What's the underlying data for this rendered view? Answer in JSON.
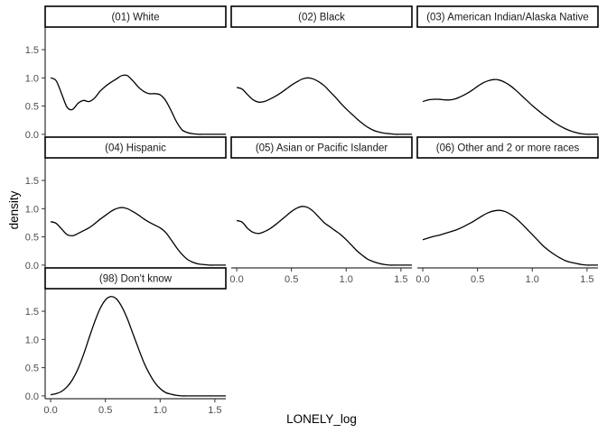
{
  "chart_data": {
    "type": "line",
    "kind": "faceted density plot",
    "xlabel": "LONELY_log",
    "ylabel": "density",
    "xlim": [
      -0.05,
      1.6
    ],
    "ylim": [
      -0.05,
      1.9
    ],
    "x_ticks": [
      0.0,
      0.5,
      1.0,
      1.5
    ],
    "x_tick_labels": [
      "0.0",
      "0.5",
      "1.0",
      "1.5"
    ],
    "y_ticks": [
      0.0,
      0.5,
      1.0,
      1.5
    ],
    "y_tick_labels": [
      "0.0",
      "0.5",
      "1.0",
      "1.5"
    ],
    "grid": false,
    "layout": "3x3 facet grid",
    "line_color": "#000000",
    "panels": [
      {
        "name": "(01) White",
        "row": 0,
        "col": 0,
        "x": [
          0.0,
          0.05,
          0.1,
          0.15,
          0.2,
          0.25,
          0.3,
          0.35,
          0.4,
          0.45,
          0.5,
          0.55,
          0.6,
          0.65,
          0.7,
          0.75,
          0.8,
          0.85,
          0.9,
          0.95,
          1.0,
          1.05,
          1.1,
          1.15,
          1.2,
          1.25,
          1.3,
          1.35,
          1.4,
          1.45,
          1.5,
          1.55,
          1.6
        ],
        "y": [
          1.0,
          0.95,
          0.72,
          0.48,
          0.44,
          0.55,
          0.6,
          0.58,
          0.64,
          0.76,
          0.85,
          0.92,
          0.98,
          1.04,
          1.04,
          0.95,
          0.84,
          0.76,
          0.72,
          0.72,
          0.7,
          0.6,
          0.42,
          0.22,
          0.08,
          0.03,
          0.01,
          0.0,
          0.0,
          0.0,
          0.0,
          0.0,
          0.0
        ]
      },
      {
        "name": "(02) Black",
        "row": 0,
        "col": 1,
        "x": [
          0.0,
          0.05,
          0.1,
          0.15,
          0.2,
          0.25,
          0.3,
          0.35,
          0.4,
          0.45,
          0.5,
          0.55,
          0.6,
          0.65,
          0.7,
          0.75,
          0.8,
          0.85,
          0.9,
          0.95,
          1.0,
          1.05,
          1.1,
          1.15,
          1.2,
          1.25,
          1.3,
          1.35,
          1.4,
          1.45,
          1.5,
          1.55,
          1.6
        ],
        "y": [
          0.83,
          0.8,
          0.7,
          0.61,
          0.57,
          0.58,
          0.62,
          0.67,
          0.73,
          0.8,
          0.87,
          0.93,
          0.98,
          1.0,
          0.98,
          0.93,
          0.86,
          0.76,
          0.66,
          0.55,
          0.45,
          0.36,
          0.27,
          0.19,
          0.12,
          0.07,
          0.04,
          0.02,
          0.01,
          0.0,
          0.0,
          0.0,
          0.0
        ]
      },
      {
        "name": "(03) American Indian/Alaska Native",
        "row": 0,
        "col": 2,
        "x": [
          0.0,
          0.05,
          0.1,
          0.15,
          0.2,
          0.25,
          0.3,
          0.35,
          0.4,
          0.45,
          0.5,
          0.55,
          0.6,
          0.65,
          0.7,
          0.75,
          0.8,
          0.85,
          0.9,
          0.95,
          1.0,
          1.05,
          1.1,
          1.15,
          1.2,
          1.25,
          1.3,
          1.35,
          1.4,
          1.45,
          1.5,
          1.55,
          1.6
        ],
        "y": [
          0.58,
          0.61,
          0.62,
          0.62,
          0.61,
          0.61,
          0.63,
          0.67,
          0.72,
          0.78,
          0.85,
          0.91,
          0.95,
          0.97,
          0.96,
          0.92,
          0.86,
          0.78,
          0.69,
          0.6,
          0.51,
          0.43,
          0.35,
          0.28,
          0.21,
          0.15,
          0.1,
          0.06,
          0.03,
          0.01,
          0.0,
          0.0,
          0.0
        ]
      },
      {
        "name": "(04) Hispanic",
        "row": 1,
        "col": 0,
        "x": [
          0.0,
          0.05,
          0.1,
          0.15,
          0.2,
          0.25,
          0.3,
          0.35,
          0.4,
          0.45,
          0.5,
          0.55,
          0.6,
          0.65,
          0.7,
          0.75,
          0.8,
          0.85,
          0.9,
          0.95,
          1.0,
          1.05,
          1.1,
          1.15,
          1.2,
          1.25,
          1.3,
          1.35,
          1.4,
          1.45,
          1.5,
          1.55,
          1.6
        ],
        "y": [
          0.77,
          0.74,
          0.64,
          0.54,
          0.52,
          0.56,
          0.61,
          0.66,
          0.73,
          0.81,
          0.88,
          0.95,
          1.0,
          1.02,
          1.0,
          0.95,
          0.89,
          0.82,
          0.76,
          0.71,
          0.66,
          0.58,
          0.45,
          0.31,
          0.19,
          0.1,
          0.05,
          0.02,
          0.01,
          0.0,
          0.0,
          0.0,
          0.0
        ]
      },
      {
        "name": "(05) Asian or Pacific Islander",
        "row": 1,
        "col": 1,
        "x": [
          0.0,
          0.05,
          0.1,
          0.15,
          0.2,
          0.25,
          0.3,
          0.35,
          0.4,
          0.45,
          0.5,
          0.55,
          0.6,
          0.65,
          0.7,
          0.75,
          0.8,
          0.85,
          0.9,
          0.95,
          1.0,
          1.05,
          1.1,
          1.15,
          1.2,
          1.25,
          1.3,
          1.35,
          1.4,
          1.45,
          1.5,
          1.55,
          1.6
        ],
        "y": [
          0.79,
          0.76,
          0.65,
          0.58,
          0.56,
          0.59,
          0.64,
          0.71,
          0.79,
          0.87,
          0.95,
          1.01,
          1.04,
          1.02,
          0.95,
          0.85,
          0.75,
          0.68,
          0.61,
          0.54,
          0.45,
          0.35,
          0.25,
          0.17,
          0.1,
          0.06,
          0.03,
          0.01,
          0.0,
          0.0,
          0.0,
          0.0,
          0.0
        ]
      },
      {
        "name": "(06) Other and 2 or more races",
        "row": 1,
        "col": 2,
        "x": [
          0.0,
          0.05,
          0.1,
          0.15,
          0.2,
          0.25,
          0.3,
          0.35,
          0.4,
          0.45,
          0.5,
          0.55,
          0.6,
          0.65,
          0.7,
          0.75,
          0.8,
          0.85,
          0.9,
          0.95,
          1.0,
          1.05,
          1.1,
          1.15,
          1.2,
          1.25,
          1.3,
          1.35,
          1.4,
          1.45,
          1.5,
          1.55,
          1.6
        ],
        "y": [
          0.45,
          0.48,
          0.51,
          0.53,
          0.56,
          0.59,
          0.62,
          0.66,
          0.71,
          0.76,
          0.82,
          0.88,
          0.93,
          0.96,
          0.97,
          0.95,
          0.9,
          0.83,
          0.74,
          0.64,
          0.54,
          0.44,
          0.34,
          0.26,
          0.19,
          0.13,
          0.08,
          0.05,
          0.03,
          0.01,
          0.0,
          0.0,
          0.0
        ]
      },
      {
        "name": "(98) Don't know",
        "row": 2,
        "col": 0,
        "x": [
          0.0,
          0.05,
          0.1,
          0.15,
          0.2,
          0.25,
          0.3,
          0.35,
          0.4,
          0.45,
          0.5,
          0.55,
          0.6,
          0.65,
          0.7,
          0.75,
          0.8,
          0.85,
          0.9,
          0.95,
          1.0,
          1.05,
          1.1,
          1.15,
          1.2,
          1.25,
          1.3,
          1.35,
          1.4,
          1.45,
          1.5,
          1.55,
          1.6
        ],
        "y": [
          0.02,
          0.04,
          0.08,
          0.16,
          0.29,
          0.48,
          0.73,
          1.02,
          1.3,
          1.54,
          1.7,
          1.76,
          1.72,
          1.58,
          1.37,
          1.11,
          0.85,
          0.6,
          0.4,
          0.24,
          0.13,
          0.06,
          0.03,
          0.01,
          0.0,
          0.0,
          0.0,
          0.0,
          0.0,
          0.0,
          0.0,
          0.0,
          0.0
        ]
      }
    ]
  }
}
